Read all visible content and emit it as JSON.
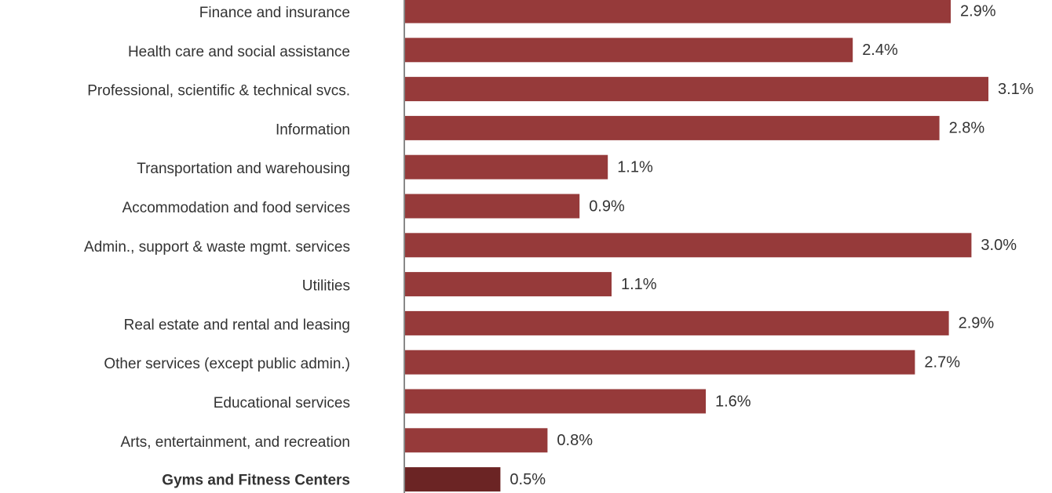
{
  "chart_data": {
    "type": "barh",
    "categories": [
      "Finance and insurance",
      "Health care and social assistance",
      "Professional, scientific & technical svcs.",
      "Information",
      "Transportation and warehousing",
      "Accommodation and food services",
      "Admin., support & waste mgmt. services",
      "Utilities",
      "Real estate and rental and leasing",
      "Other services (except public admin.)",
      "Educational services",
      "Arts, entertainment, and recreation",
      "Gyms and Fitness Centers"
    ],
    "values": [
      2.9,
      2.38,
      3.1,
      2.84,
      1.08,
      0.93,
      3.01,
      1.1,
      2.89,
      2.71,
      1.6,
      0.76,
      0.51
    ],
    "value_labels": [
      "2.9%",
      "2.4%",
      "3.1%",
      "2.8%",
      "1.1%",
      "0.9%",
      "3.0%",
      "1.1%",
      "2.9%",
      "2.7%",
      "1.6%",
      "0.8%",
      "0.5%"
    ],
    "color": "#963a3a",
    "highlight_color": "#6b2424",
    "highlight": 12,
    "xlim": [
      0,
      3.4
    ]
  }
}
